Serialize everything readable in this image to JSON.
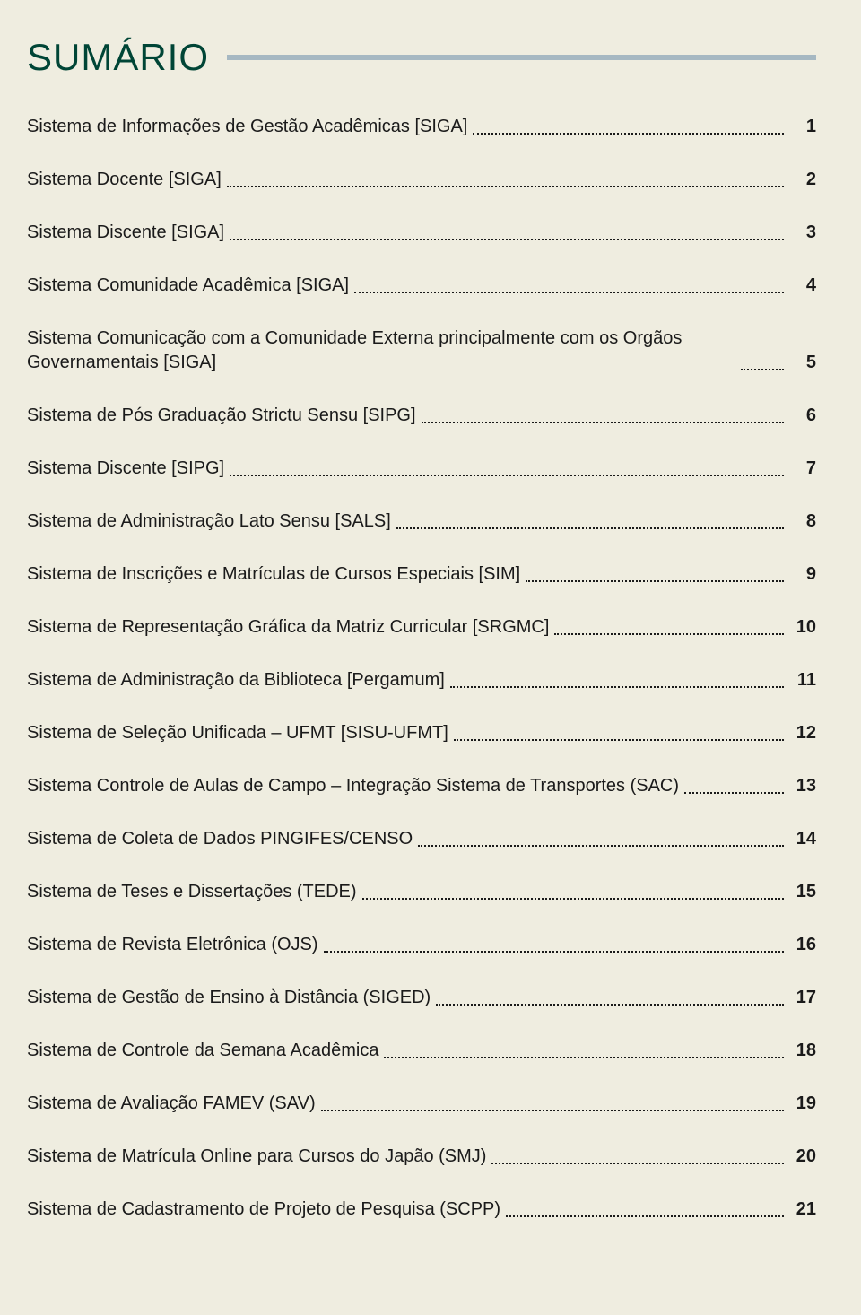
{
  "title": "SUMÁRIO",
  "colors": {
    "background": "#efede0",
    "title": "#004536",
    "rule": "#a6b8c2",
    "text": "#1a1a1a"
  },
  "typography": {
    "title_fontsize_pt": 32,
    "body_fontsize_pt": 15,
    "page_fontweight": "bold"
  },
  "toc": {
    "items": [
      {
        "label": "Sistema de Informações de Gestão Acadêmicas  [SIGA]",
        "page": "1"
      },
      {
        "label": "Sistema Docente  [SIGA]",
        "page": "2"
      },
      {
        "label": "Sistema Discente  [SIGA]",
        "page": "3"
      },
      {
        "label": "Sistema Comunidade Acadêmica [SIGA]",
        "page": "4"
      },
      {
        "label": "Sistema Comunicação com a Comunidade Externa principalmente com os Orgãos Governamentais [SIGA]",
        "page": "5"
      },
      {
        "label": "Sistema de Pós Graduação Strictu Sensu [SIPG]",
        "page": "6"
      },
      {
        "label": "Sistema Discente [SIPG]",
        "page": "7"
      },
      {
        "label": "Sistema de Administração Lato Sensu  [SALS]",
        "page": "8"
      },
      {
        "label": "Sistema de Inscrições e Matrículas de Cursos Especiais [SIM]",
        "page": "9"
      },
      {
        "label": "Sistema de Representação Gráfica da Matriz Curricular [SRGMC]",
        "page": "10"
      },
      {
        "label": "Sistema de Administração da Biblioteca  [Pergamum]",
        "page": "11"
      },
      {
        "label": "Sistema de Seleção Unificada – UFMT  [SISU-UFMT]",
        "page": "12"
      },
      {
        "label": "Sistema Controle de Aulas de Campo – Integração Sistema de Transportes (SAC)",
        "page": "13"
      },
      {
        "label": "Sistema de Coleta de Dados PINGIFES/CENSO",
        "page": "14"
      },
      {
        "label": "Sistema de Teses e Dissertações (TEDE)",
        "page": "15"
      },
      {
        "label": "Sistema de Revista Eletrônica (OJS)",
        "page": "16"
      },
      {
        "label": "Sistema de Gestão de Ensino à Distância (SIGED)",
        "page": "17"
      },
      {
        "label": "Sistema de Controle da Semana Acadêmica",
        "page": "18"
      },
      {
        "label": "Sistema de Avaliação FAMEV (SAV)",
        "page": "19"
      },
      {
        "label": "Sistema de Matrícula Online para Cursos do Japão (SMJ)",
        "page": "20"
      },
      {
        "label": "Sistema de Cadastramento de Projeto de Pesquisa (SCPP)",
        "page": "21"
      }
    ]
  }
}
